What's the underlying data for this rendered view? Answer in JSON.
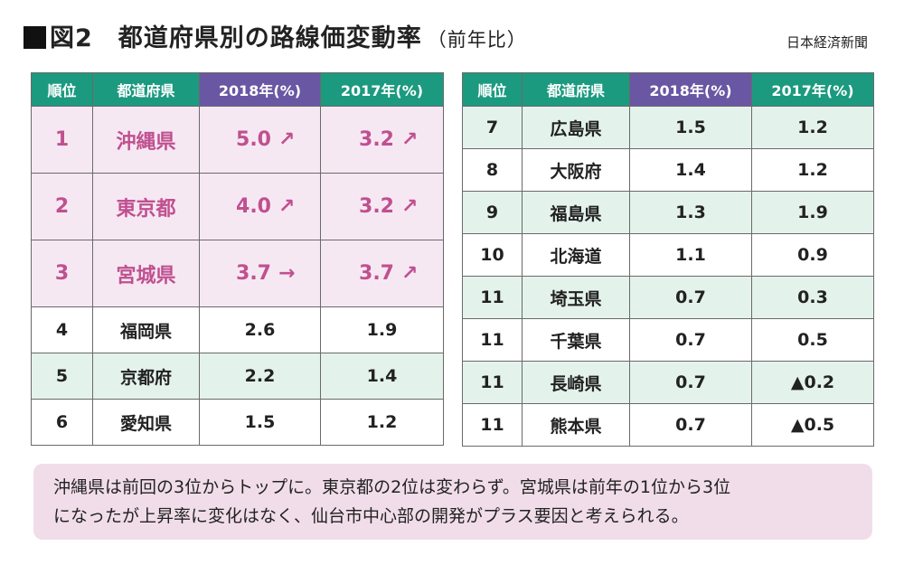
{
  "title": {
    "main": "図2　都道府県別の路線価変動率",
    "sub": "（前年比）"
  },
  "source": "日本経済新聞",
  "chart_data": {
    "type": "table",
    "columns": [
      "順位",
      "都道府県",
      "2018年(%)",
      "2017年(%)"
    ],
    "rows": [
      {
        "rank": "1",
        "pref": "沖縄県",
        "v2018": "5.0",
        "arrow2018": "↗",
        "v2017": "3.2",
        "arrow2017": "↗"
      },
      {
        "rank": "2",
        "pref": "東京都",
        "v2018": "4.0",
        "arrow2018": "↗",
        "v2017": "3.2",
        "arrow2017": "↗"
      },
      {
        "rank": "3",
        "pref": "宮城県",
        "v2018": "3.7",
        "arrow2018": "→",
        "v2017": "3.7",
        "arrow2017": "↗"
      },
      {
        "rank": "4",
        "pref": "福岡県",
        "v2018": "2.6",
        "v2017": "1.9"
      },
      {
        "rank": "5",
        "pref": "京都府",
        "v2018": "2.2",
        "v2017": "1.4"
      },
      {
        "rank": "6",
        "pref": "愛知県",
        "v2018": "1.5",
        "v2017": "1.2"
      },
      {
        "rank": "7",
        "pref": "広島県",
        "v2018": "1.5",
        "v2017": "1.2"
      },
      {
        "rank": "8",
        "pref": "大阪府",
        "v2018": "1.4",
        "v2017": "1.2"
      },
      {
        "rank": "9",
        "pref": "福島県",
        "v2018": "1.3",
        "v2017": "1.9"
      },
      {
        "rank": "10",
        "pref": "北海道",
        "v2018": "1.1",
        "v2017": "0.9"
      },
      {
        "rank": "11",
        "pref": "埼玉県",
        "v2018": "0.7",
        "v2017": "0.3"
      },
      {
        "rank": "11",
        "pref": "千葉県",
        "v2018": "0.7",
        "v2017": "0.5"
      },
      {
        "rank": "11",
        "pref": "長崎県",
        "v2018": "0.7",
        "v2017": "▲0.2"
      },
      {
        "rank": "11",
        "pref": "熊本県",
        "v2018": "0.7",
        "v2017": "▲0.5"
      }
    ]
  },
  "note": {
    "line1": "沖縄県は前回の3位からトップに。東京都の2位は変わらず。宮城県は前年の1位から3位",
    "line2": "になったが上昇率に変化はなく、仙台市中心部の開発がプラス要因と考えられる。"
  },
  "colors": {
    "header_green": "#1c9a80",
    "header_purple": "#6a57a3",
    "highlight_pink": "#c0508f",
    "stripe": "#e4f2ec",
    "note_bg": "#f1dde9"
  }
}
